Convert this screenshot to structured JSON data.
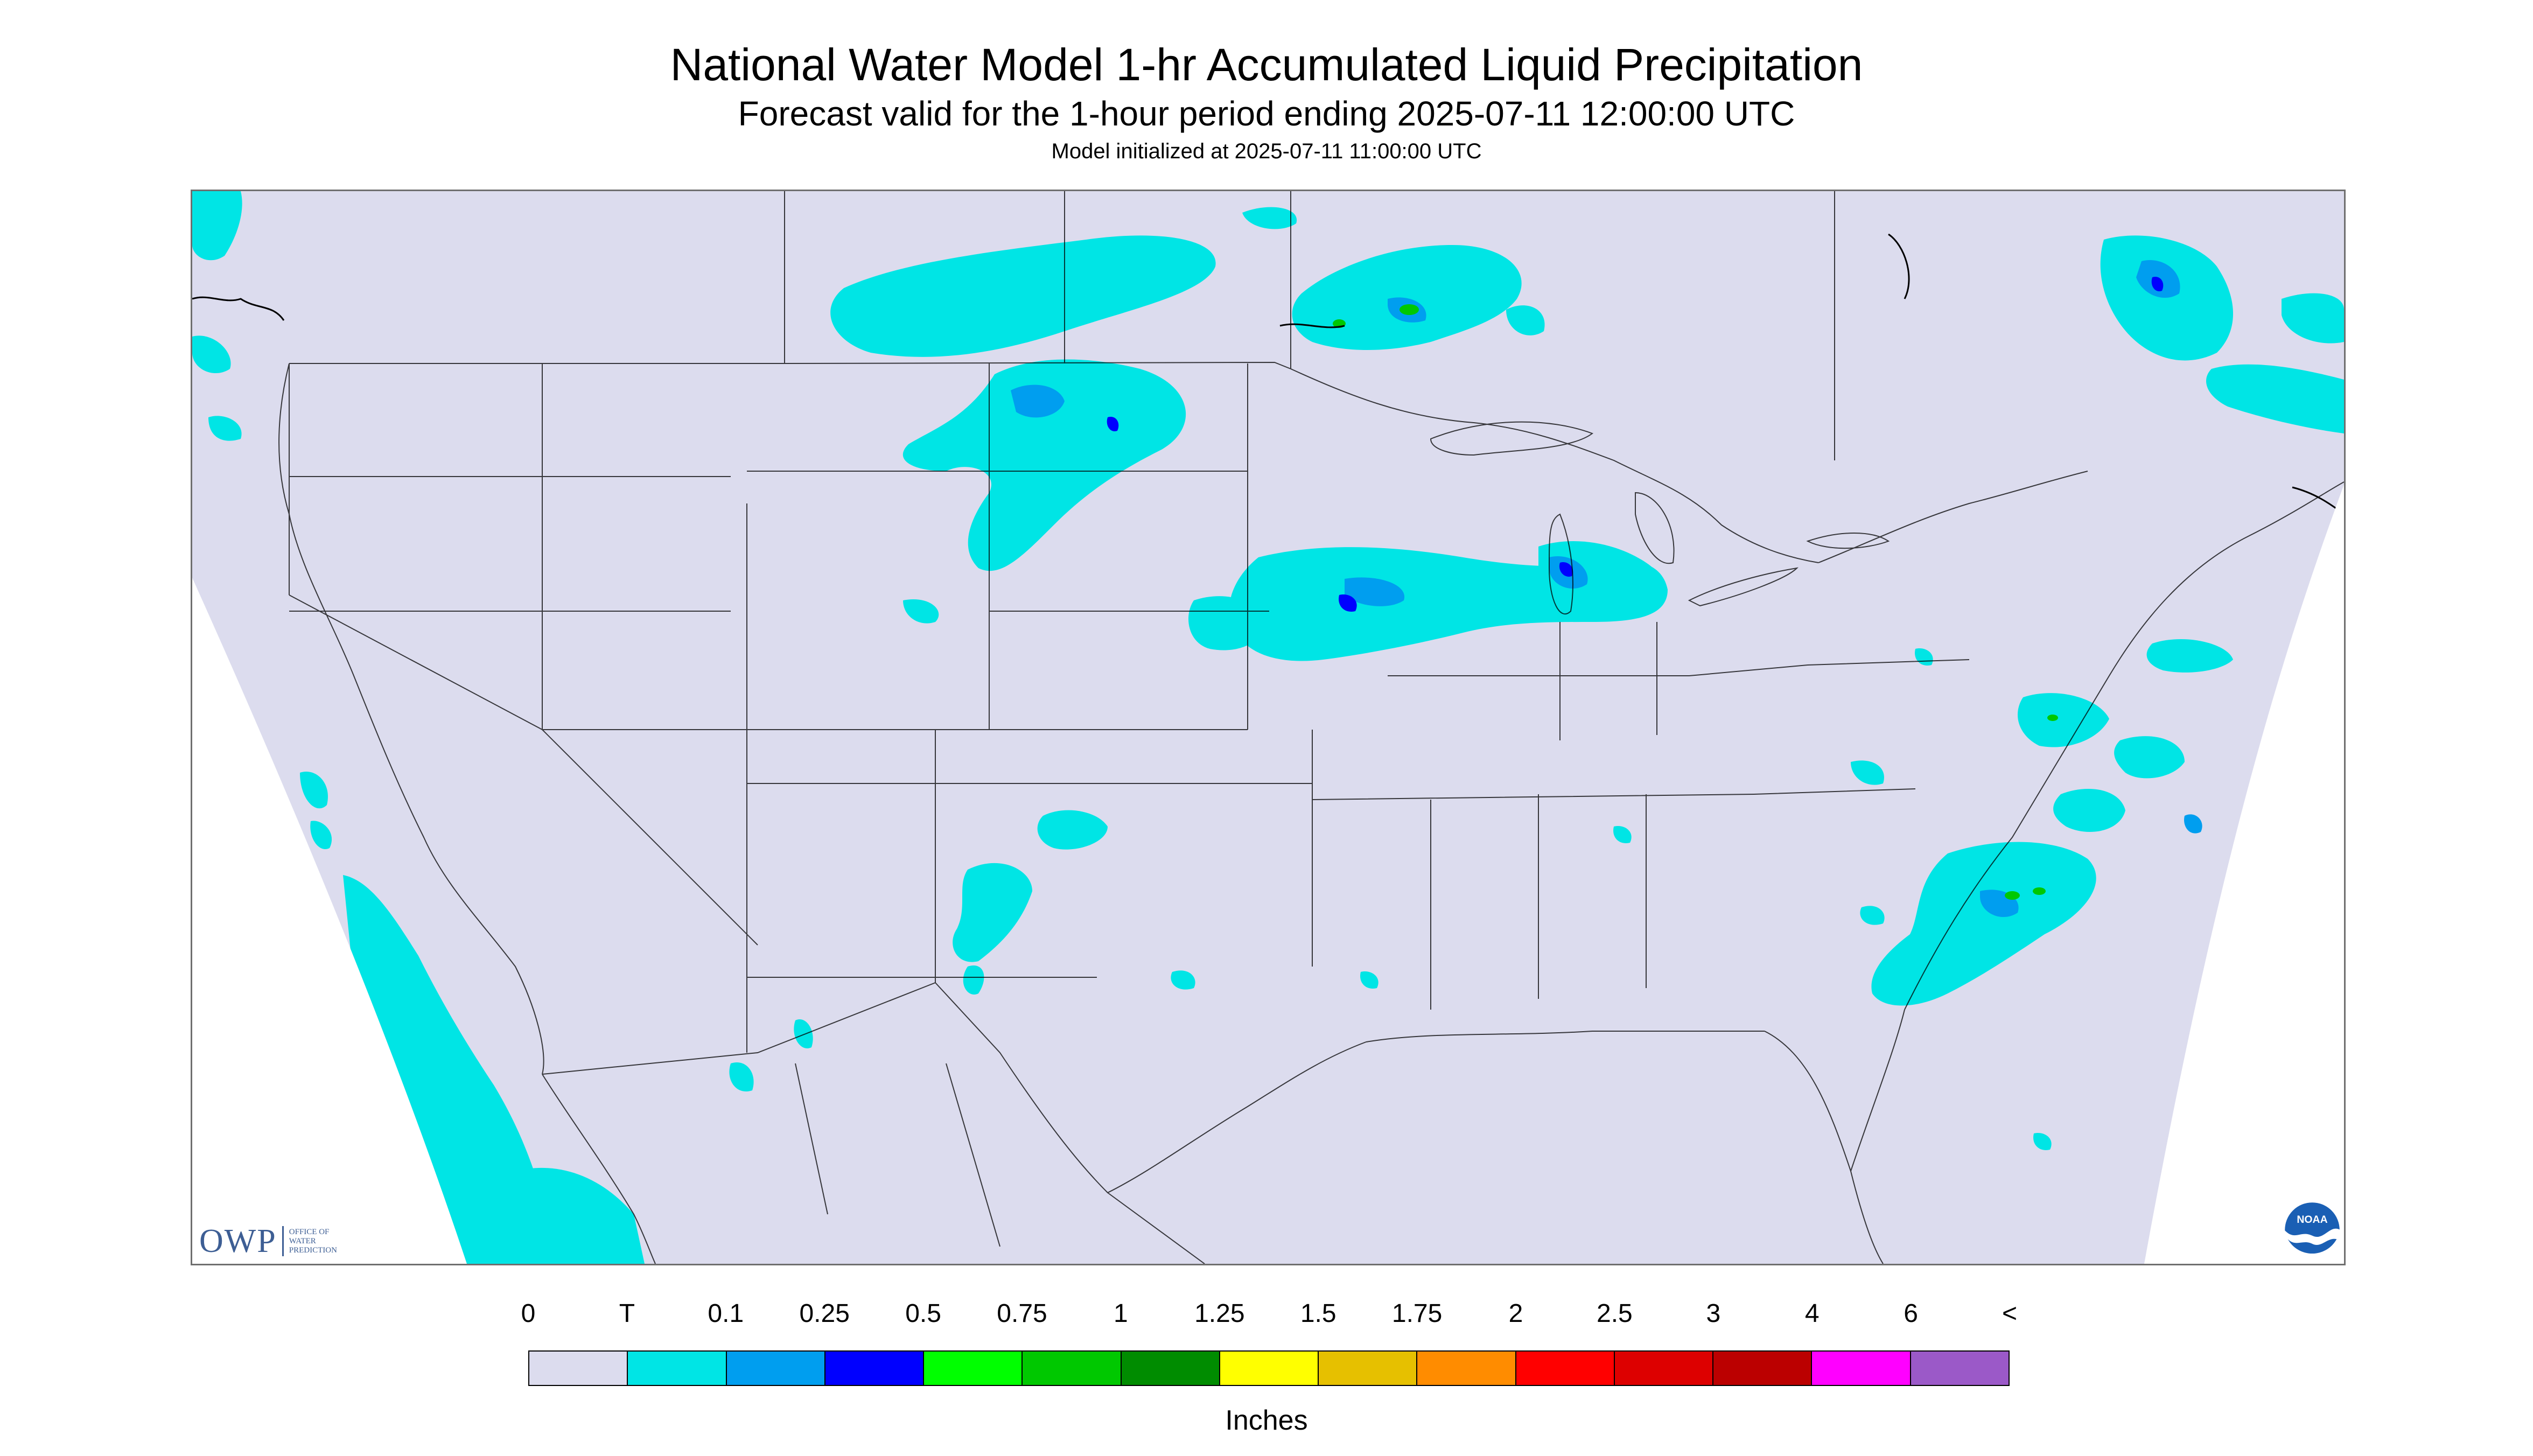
{
  "header": {
    "title": "National Water Model 1-hr Accumulated Liquid Precipitation",
    "subtitle": "Forecast valid for the 1-hour period ending 2025-07-11 12:00:00 UTC",
    "initialized": "Model initialized at 2025-07-11 11:00:00 UTC"
  },
  "map": {
    "region": "Continental United States",
    "background_color": "#dcdcee",
    "outside_color": "#ffffff",
    "border_color": "#000000"
  },
  "logos": {
    "owp": {
      "text": "OWP",
      "subtext": "OFFICE OF\nWATER\nPREDICTION",
      "color": "#3d5e94"
    },
    "noaa": {
      "text": "NOAA",
      "icon": "noaa-logo-icon"
    }
  },
  "legend": {
    "labels": [
      "0",
      "T",
      "0.1",
      "0.25",
      "0.5",
      "0.75",
      "1",
      "1.25",
      "1.5",
      "1.75",
      "2",
      "2.5",
      "3",
      "4",
      "6",
      "<"
    ],
    "colors": [
      "#dcdcee",
      "#00e5e5",
      "#009eef",
      "#0000ff",
      "#00ff00",
      "#00c800",
      "#008c00",
      "#ffff00",
      "#e6c000",
      "#ff8c00",
      "#ff0000",
      "#dd0000",
      "#bb0000",
      "#ff00ff",
      "#9b59c8"
    ],
    "units": "Inches"
  }
}
